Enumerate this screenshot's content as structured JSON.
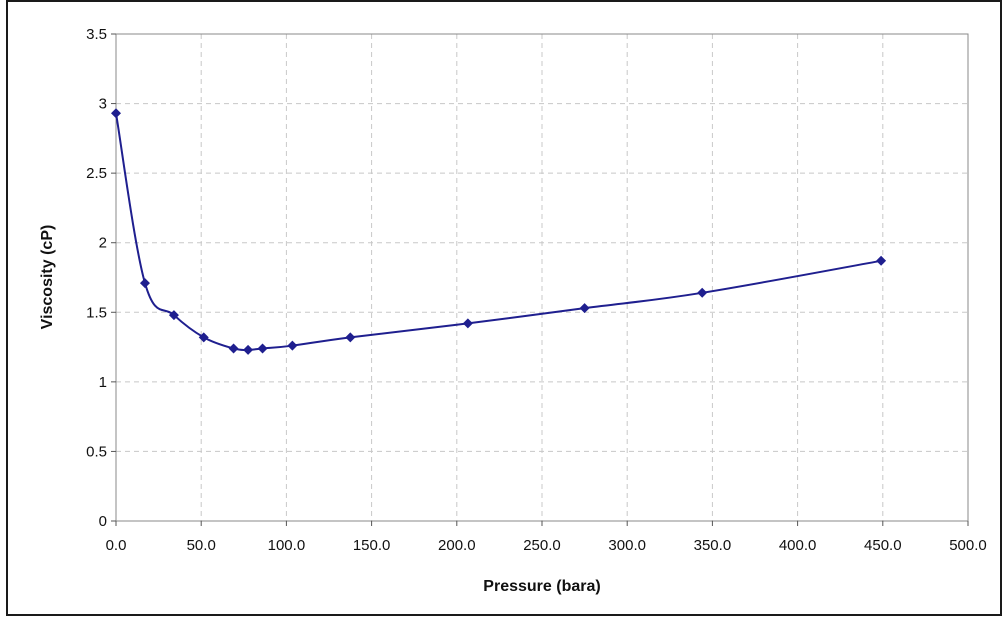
{
  "chart_data": {
    "type": "line",
    "title": "",
    "xlabel": "Pressure (bara)",
    "ylabel": "Viscosity (cP)",
    "xlim": [
      0,
      500
    ],
    "ylim": [
      0,
      3.5
    ],
    "x_ticks": [
      "0.0",
      "50.0",
      "100.0",
      "150.0",
      "200.0",
      "250.0",
      "300.0",
      "350.0",
      "400.0",
      "450.0",
      "500.0"
    ],
    "y_ticks": [
      "0",
      "0.5",
      "1",
      "1.5",
      "2",
      "2.5",
      "3",
      "3.5"
    ],
    "grid": true,
    "legend": "none",
    "series": [
      {
        "color": "#1f1f8f",
        "marker": "diamond",
        "points": [
          {
            "x": 0.0,
            "y": 2.93
          },
          {
            "x": 17.0,
            "y": 1.71
          },
          {
            "x": 34.0,
            "y": 1.48
          },
          {
            "x": 51.5,
            "y": 1.32
          },
          {
            "x": 69.0,
            "y": 1.24
          },
          {
            "x": 77.5,
            "y": 1.23
          },
          {
            "x": 86.0,
            "y": 1.24
          },
          {
            "x": 103.5,
            "y": 1.26
          },
          {
            "x": 137.5,
            "y": 1.32
          },
          {
            "x": 206.5,
            "y": 1.42
          },
          {
            "x": 275.0,
            "y": 1.53
          },
          {
            "x": 344.0,
            "y": 1.64
          },
          {
            "x": 449.0,
            "y": 1.87
          }
        ]
      }
    ]
  }
}
